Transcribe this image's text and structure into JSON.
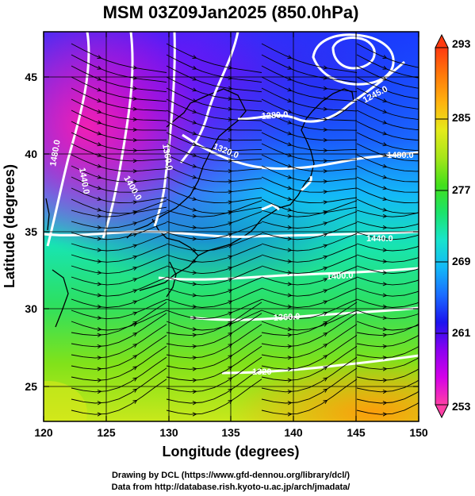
{
  "title": "MSM 03Z09Jan2025 (850.0hPa)",
  "x_axis": {
    "label": "Longitude (degrees)",
    "range": [
      120,
      150
    ],
    "ticks": [
      120,
      125,
      130,
      135,
      140,
      145,
      150
    ]
  },
  "y_axis": {
    "label": "Latitude (degrees)",
    "range": [
      22.4,
      47.6
    ],
    "ticks": [
      25,
      30,
      35,
      40,
      45
    ]
  },
  "colorbar": {
    "range": [
      253,
      293
    ],
    "ticks": [
      253,
      261,
      269,
      277,
      285,
      293
    ],
    "colors": [
      "#ff3fa6",
      "#d400e8",
      "#8a00f0",
      "#1b14ef",
      "#1a6dff",
      "#13b9f7",
      "#18e4cb",
      "#1be36b",
      "#43e01a",
      "#a6e61a",
      "#e5ea1b",
      "#ffb30f",
      "#ff7a0a",
      "#ff3a10"
    ]
  },
  "contour_labels": [
    "1280.0",
    "1320.0",
    "1360.0",
    "1400.0",
    "1440.0",
    "1480.0",
    "1245.0",
    "1320",
    "1360.0",
    "1400.0",
    "1440.0",
    "1480.0"
  ],
  "credits": {
    "line1": "Drawing by DCL (https://www.gfd-dennou.org/library/dcl/)",
    "line2": "Data from http://database.rish.kyoto-u.ac.jp/arch/jmadata/"
  }
}
